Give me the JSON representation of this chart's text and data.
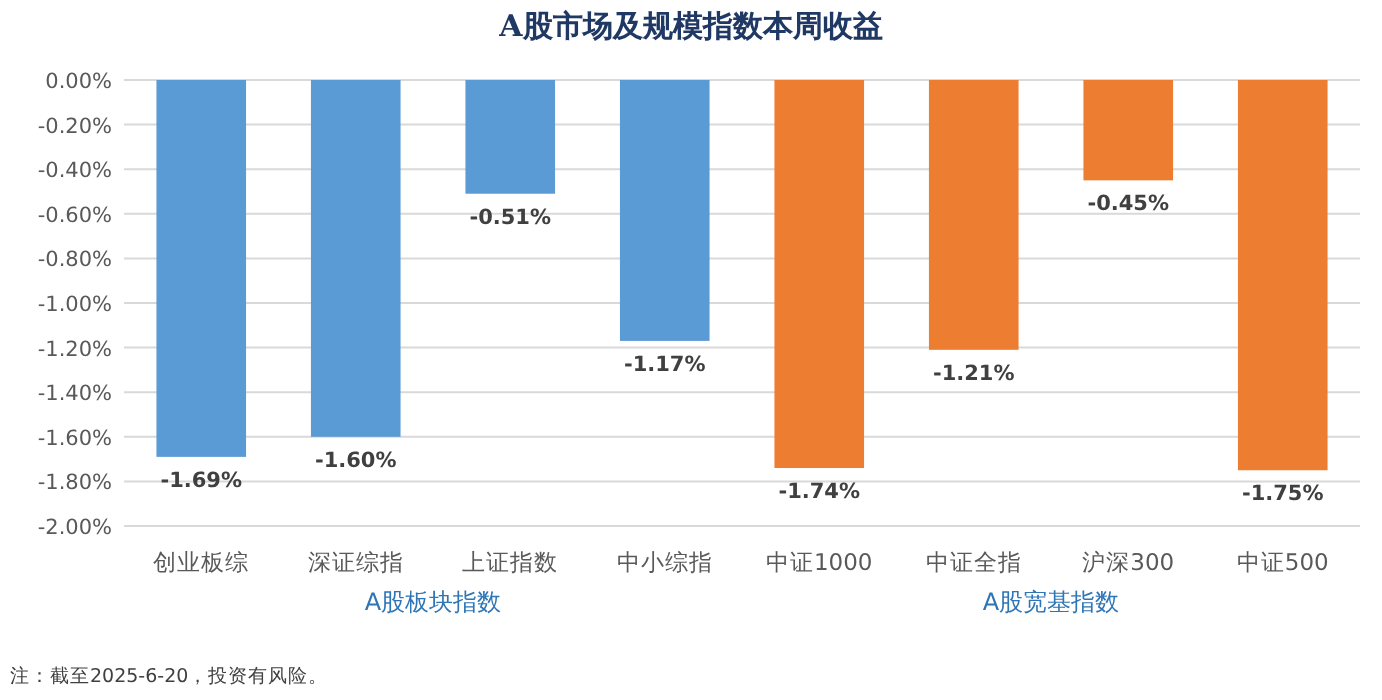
{
  "chart_data": {
    "type": "bar",
    "title": "A股市场及规模指数本周收益",
    "categories": [
      "创业板综",
      "深证综指",
      "上证指数",
      "中小综指",
      "中证1000",
      "中证全指",
      "沪深300",
      "中证500"
    ],
    "values": [
      -1.69,
      -1.6,
      -0.51,
      -1.17,
      -1.74,
      -1.21,
      -0.45,
      -1.75
    ],
    "colors": [
      "#5b9bd5",
      "#5b9bd5",
      "#5b9bd5",
      "#5b9bd5",
      "#ed7d31",
      "#ed7d31",
      "#ed7d31",
      "#ed7d31"
    ],
    "value_labels": [
      "-1.69%",
      "-1.60%",
      "-0.51%",
      "-1.17%",
      "-1.74%",
      "-1.21%",
      "-0.45%",
      "-1.75%"
    ],
    "ylim": [
      -2,
      0
    ],
    "yticks": [
      {
        "value": 0,
        "label": "0.00%"
      },
      {
        "value": -0.2,
        "label": "-0.20%"
      },
      {
        "value": -0.4,
        "label": "-0.40%"
      },
      {
        "value": -0.6,
        "label": "-0.60%"
      },
      {
        "value": -0.8,
        "label": "-0.80%"
      },
      {
        "value": -1.0,
        "label": "-1.00%"
      },
      {
        "value": -1.2,
        "label": "-1.20%"
      },
      {
        "value": -1.4,
        "label": "-1.40%"
      },
      {
        "value": -1.6,
        "label": "-1.60%"
      },
      {
        "value": -1.8,
        "label": "-1.80%"
      },
      {
        "value": -2.0,
        "label": "-2.00%"
      }
    ],
    "grid": "y",
    "annotations": [
      "A股板块指数",
      "A股宽基指数",
      "注：截至2025-6-20，投资有风险。"
    ]
  }
}
